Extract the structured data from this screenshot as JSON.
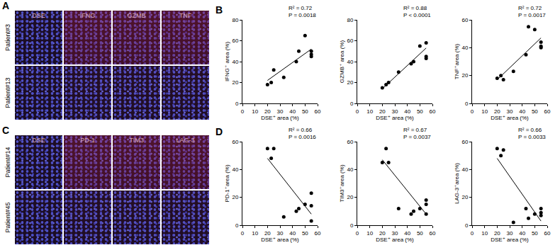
{
  "panels": [
    {
      "panel": "A",
      "columns": [
        "DSE",
        "IFNG",
        "GZMB",
        "TNF"
      ],
      "rows": [
        "Patient#3",
        "Patient#13"
      ]
    },
    {
      "panel": "C",
      "columns": [
        "DSE",
        "PD-1",
        "TIM3",
        "LAG-3"
      ],
      "rows": [
        "Patient#14",
        "Patient#45"
      ]
    }
  ],
  "chart_data": [
    {
      "type": "scatter",
      "panel": "B",
      "xlabel": "DSE⁺ area (%)",
      "ylabel": "IFNG⁺ area (%)",
      "xlim": [
        0,
        60
      ],
      "xticks": [
        0,
        10,
        20,
        30,
        40,
        50,
        60
      ],
      "ylim": [
        0,
        80
      ],
      "yticks": [
        0,
        20,
        40,
        60,
        80
      ],
      "annotations": [
        "R² = 0.72",
        "P = 0.0018"
      ],
      "series": [
        {
          "type": "scatter",
          "marker": "circle",
          "color": "#000000",
          "x": [
            20,
            23,
            25,
            33,
            43,
            45,
            50,
            55,
            55,
            55
          ],
          "values": [
            18,
            20,
            32,
            25,
            40,
            50,
            65,
            50,
            47,
            45
          ]
        },
        {
          "type": "line",
          "line_style": "solid",
          "color": "#000000",
          "x": [
            20,
            55
          ],
          "values": [
            22,
            52
          ]
        }
      ]
    },
    {
      "type": "scatter",
      "xlabel": "DSE⁺ area (%)",
      "ylabel": "GZMB⁺ area (%)",
      "xlim": [
        0,
        60
      ],
      "xticks": [
        0,
        10,
        20,
        30,
        40,
        50,
        60
      ],
      "ylim": [
        0,
        80
      ],
      "yticks": [
        0,
        20,
        40,
        60,
        80
      ],
      "annotations": [
        "R² = 0.88",
        "P < 0.0001"
      ],
      "series": [
        {
          "type": "scatter",
          "marker": "circle",
          "color": "#000000",
          "x": [
            20,
            23,
            25,
            33,
            43,
            45,
            50,
            55,
            55,
            55
          ],
          "values": [
            15,
            18,
            20,
            30,
            38,
            40,
            55,
            58,
            45,
            43
          ]
        },
        {
          "type": "line",
          "line_style": "solid",
          "color": "#000000",
          "x": [
            20,
            55
          ],
          "values": [
            14,
            53
          ]
        }
      ]
    },
    {
      "type": "scatter",
      "xlabel": "DSE⁺ area (%)",
      "ylabel": "TNF⁺area (%)",
      "xlim": [
        0,
        60
      ],
      "xticks": [
        0,
        10,
        20,
        30,
        40,
        50,
        60
      ],
      "ylim": [
        0,
        60
      ],
      "yticks": [
        0,
        20,
        40,
        60
      ],
      "annotations": [
        "R² = 0.72",
        "P = 0.0017"
      ],
      "series": [
        {
          "type": "scatter",
          "marker": "circle",
          "color": "#000000",
          "x": [
            20,
            23,
            25,
            33,
            43,
            45,
            50,
            55,
            55,
            55
          ],
          "values": [
            18,
            20,
            17,
            23,
            35,
            55,
            53,
            44,
            41,
            40
          ]
        },
        {
          "type": "line",
          "line_style": "solid",
          "color": "#000000",
          "x": [
            20,
            55
          ],
          "values": [
            17,
            47
          ]
        }
      ]
    },
    {
      "type": "scatter",
      "panel": "D",
      "xlabel": "DSE⁺ area (%)",
      "ylabel": "PD-1⁺area (%)",
      "xlim": [
        0,
        60
      ],
      "xticks": [
        0,
        10,
        20,
        30,
        40,
        50,
        60
      ],
      "ylim": [
        0,
        60
      ],
      "yticks": [
        0,
        20,
        40,
        60
      ],
      "annotations": [
        "R² = 0.66",
        "P = 0.0016"
      ],
      "series": [
        {
          "type": "scatter",
          "marker": "circle",
          "color": "#000000",
          "x": [
            20,
            23,
            25,
            33,
            43,
            45,
            50,
            55,
            55,
            55
          ],
          "values": [
            55,
            48,
            55,
            6,
            10,
            12,
            15,
            23,
            14,
            3
          ]
        },
        {
          "type": "line",
          "line_style": "solid",
          "color": "#000000",
          "x": [
            20,
            55
          ],
          "values": [
            48,
            8
          ]
        }
      ]
    },
    {
      "type": "scatter",
      "xlabel": "DSE⁺ area (%)",
      "ylabel": "TIM3⁺area (%)",
      "xlim": [
        0,
        60
      ],
      "xticks": [
        0,
        10,
        20,
        30,
        40,
        50,
        60
      ],
      "ylim": [
        0,
        60
      ],
      "yticks": [
        0,
        20,
        40,
        60
      ],
      "annotations": [
        "R² = 0.67",
        "P = 0.0037"
      ],
      "series": [
        {
          "type": "scatter",
          "marker": "circle",
          "color": "#000000",
          "x": [
            20,
            23,
            25,
            33,
            43,
            45,
            50,
            55,
            55,
            55
          ],
          "values": [
            45,
            55,
            45,
            12,
            8,
            10,
            12,
            18,
            15,
            8
          ]
        },
        {
          "type": "line",
          "line_style": "solid",
          "color": "#000000",
          "x": [
            20,
            55
          ],
          "values": [
            47,
            8
          ]
        }
      ]
    },
    {
      "type": "scatter",
      "xlabel": "DSE⁺ area (%)",
      "ylabel": "LAG-3⁺area (%)",
      "xlim": [
        0,
        60
      ],
      "xticks": [
        0,
        10,
        20,
        30,
        40,
        50,
        60
      ],
      "ylim": [
        0,
        60
      ],
      "yticks": [
        0,
        20,
        40,
        60
      ],
      "annotations": [
        "R² = 0.66",
        "P = 0.0033"
      ],
      "series": [
        {
          "type": "scatter",
          "marker": "circle",
          "color": "#000000",
          "x": [
            20,
            23,
            25,
            33,
            43,
            45,
            50,
            55,
            55,
            55
          ],
          "values": [
            55,
            50,
            54,
            2,
            12,
            5,
            8,
            12,
            9,
            7
          ]
        },
        {
          "type": "line",
          "line_style": "solid",
          "color": "#000000",
          "x": [
            20,
            55
          ],
          "values": [
            48,
            3
          ]
        }
      ]
    }
  ]
}
